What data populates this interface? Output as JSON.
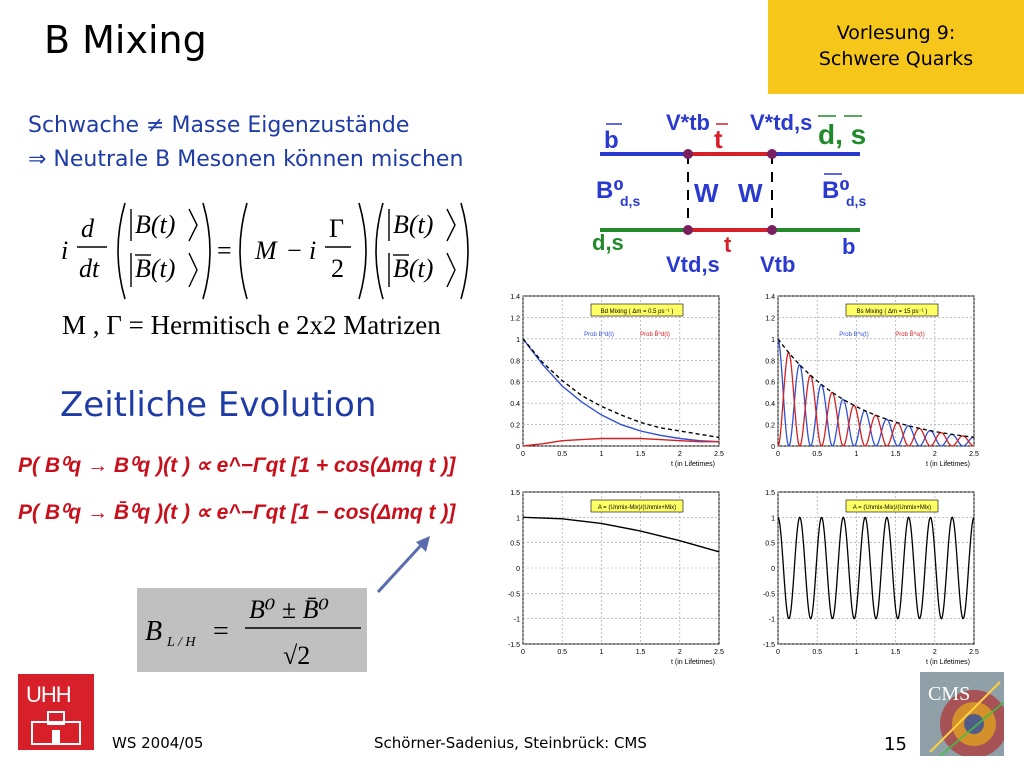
{
  "title": "B Mixing",
  "lecture": {
    "line1": "Vorlesung 9:",
    "line2": "Schwere Quarks"
  },
  "intro": {
    "line1": "Schwache ≠ Masse Eigenzustände",
    "line2": "⇒ Neutrale B Mesonen können mischen"
  },
  "equation1": {
    "i": "i",
    "d": "d",
    "dt": "dt",
    "bt": "B(t)",
    "bbar_t": "B(t)",
    "eq": "=",
    "M": "M",
    "minus": "−",
    "i2": "i",
    "gamma": "Γ",
    "two": "2",
    "bt2": "B(t)",
    "bbar_t2": "B(t)"
  },
  "hermitian": "M , Γ = Hermitisch e 2x2 Matrizen",
  "section": "Zeitliche Evolution",
  "prob1": "P( B⁰q → B⁰q )(t ) ∝ e^−Γqt [1 + cos(Δmq t )]",
  "prob2": "P( B⁰q → B̄⁰q )(t ) ∝ e^−Γqt [1 − cos(Δmq t )]",
  "bl": {
    "lhs": "B",
    "sub": "L / H",
    "eq": "=",
    "num": "B⁰ ± B̄⁰",
    "den": "√2"
  },
  "feynman": {
    "vtb_star": "V*tb",
    "vtds_star": "V*td,s",
    "b_bar": "b",
    "t_bar": "t",
    "ds_bar": "d, s",
    "b0": "B⁰",
    "b0_sub": "d,s",
    "bbar0": "B⁰",
    "bbar0_sub": "d,s",
    "w1": "W",
    "w2": "W",
    "ds": "d,s",
    "t": "t",
    "b": "b",
    "vtds": "Vtd,s",
    "vtb": "Vtb"
  },
  "plots": {
    "xlabel": "t (in Lifetimes)",
    "tl": {
      "legend_title": "Bd Mixing ( Δm = 0.5 ps⁻¹ )",
      "prob_b0": "Prob B⁰d(t)",
      "prob_bbar": "Prob B̄⁰d(t)"
    },
    "tr": {
      "legend_title": "Bs Mixing ( Δm = 15 ps⁻¹ )",
      "prob_b0": "Prob B⁰s(t)",
      "prob_bbar": "Prob B̄⁰s(t)"
    },
    "bl": {
      "legend_title": "A = (Unmix-Mix)/(Unmix+Mix)"
    },
    "br": {
      "legend_title": "A = (Unmix-Mix)/(Unmix+Mix)"
    },
    "top_yticks": [
      "1.4",
      "1.2",
      "1",
      "0.8",
      "0.6",
      "0.4",
      "0.2",
      "0"
    ],
    "bottom_yticks": [
      "1.5",
      "1",
      "0.5",
      "0",
      "-0.5",
      "-1",
      "-1.5"
    ],
    "xticks": [
      "0",
      "0.5",
      "1",
      "1.5",
      "2",
      "2.5"
    ]
  },
  "chart_data": [
    {
      "type": "line",
      "title": "Bd Mixing ( Δm = 0.5 ps⁻¹ )",
      "xlabel": "t (in Lifetimes)",
      "ylabel": "",
      "xlim": [
        0,
        2.5
      ],
      "ylim": [
        0,
        1.4
      ],
      "grid": true,
      "legend": "top-right",
      "series": [
        {
          "name": "Prob B⁰d(t)",
          "color": "#3050d8",
          "x": [
            0,
            0.25,
            0.5,
            0.75,
            1,
            1.25,
            1.5,
            1.75,
            2,
            2.25,
            2.5
          ],
          "y": [
            1.0,
            0.76,
            0.56,
            0.41,
            0.29,
            0.2,
            0.14,
            0.1,
            0.07,
            0.05,
            0.04
          ]
        },
        {
          "name": "Prob B̄⁰d(t)",
          "color": "#d82020",
          "x": [
            0,
            0.25,
            0.5,
            0.75,
            1,
            1.25,
            1.5,
            1.75,
            2,
            2.25,
            2.5
          ],
          "y": [
            0.0,
            0.02,
            0.05,
            0.06,
            0.07,
            0.07,
            0.07,
            0.06,
            0.05,
            0.04,
            0.04
          ]
        },
        {
          "name": "",
          "color": "#000000",
          "x": [
            0,
            0.25,
            0.5,
            0.75,
            1,
            1.25,
            1.5,
            1.75,
            2,
            2.25,
            2.5
          ],
          "y": [
            1.0,
            0.78,
            0.61,
            0.47,
            0.37,
            0.29,
            0.22,
            0.17,
            0.14,
            0.11,
            0.08
          ]
        }
      ]
    },
    {
      "type": "line",
      "title": "Bs Mixing ( Δm = 15 ps⁻¹ )",
      "xlabel": "t (in Lifetimes)",
      "ylabel": "",
      "xlim": [
        0,
        2.5
      ],
      "ylim": [
        0,
        1.4
      ],
      "grid": true,
      "legend": "top-right",
      "frequency_cycles": 9
    },
    {
      "type": "line",
      "title": "A = (Unmix-Mix)/(Unmix+Mix)",
      "xlabel": "t (in Lifetimes)",
      "ylabel": "",
      "xlim": [
        0,
        2.5
      ],
      "ylim": [
        -1.5,
        1.5
      ],
      "grid": true,
      "series": [
        {
          "name": "",
          "color": "#000000",
          "x": [
            0,
            0.5,
            1,
            1.5,
            2,
            2.5
          ],
          "y": [
            1.0,
            0.97,
            0.88,
            0.73,
            0.54,
            0.32
          ]
        }
      ]
    },
    {
      "type": "line",
      "title": "A = (Unmix-Mix)/(Unmix+Mix)",
      "xlabel": "t (in Lifetimes)",
      "ylabel": "",
      "xlim": [
        0,
        2.5
      ],
      "ylim": [
        -1.5,
        1.5
      ],
      "grid": true,
      "frequency_cycles": 9
    }
  ],
  "footer": {
    "semester": "WS 2004/05",
    "authors": "Schörner-Sadenius, Steinbrück: CMS",
    "page": "15"
  },
  "logos": {
    "uhh": "UHH",
    "cms": "CMS"
  }
}
